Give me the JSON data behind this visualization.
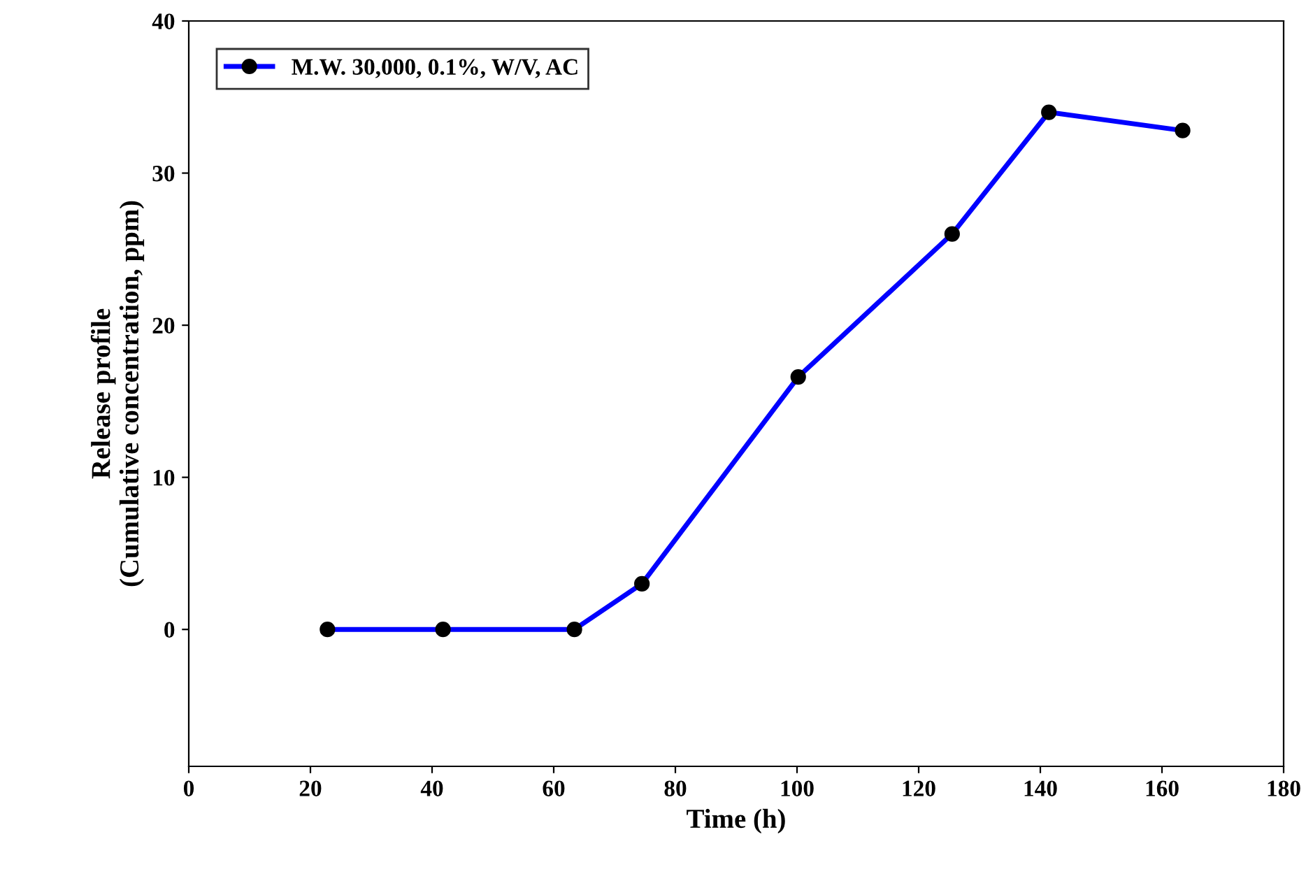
{
  "chart_data": {
    "type": "line",
    "xlabel": "Time (h)",
    "ylabel": "Release profile\n(Cumulative concentration, ppm)",
    "x": [
      22.8,
      41.8,
      63.4,
      74.5,
      100.2,
      125.5,
      141.4,
      163.4
    ],
    "series": [
      {
        "name": "M.W. 30,000, 0.1%, W/V, AC",
        "color": "#0000ff",
        "values": [
          0,
          0,
          0,
          3.0,
          16.6,
          26.0,
          34.0,
          32.8
        ]
      }
    ],
    "xlim": [
      0,
      180
    ],
    "xticks": [
      0,
      20,
      40,
      60,
      80,
      100,
      120,
      140,
      160,
      180
    ],
    "ylim": [
      -9,
      40
    ],
    "yticks": [
      0,
      10,
      20,
      30,
      40
    ],
    "marker": "circle",
    "line_style": "solid",
    "legend": "top left",
    "grid": false
  }
}
